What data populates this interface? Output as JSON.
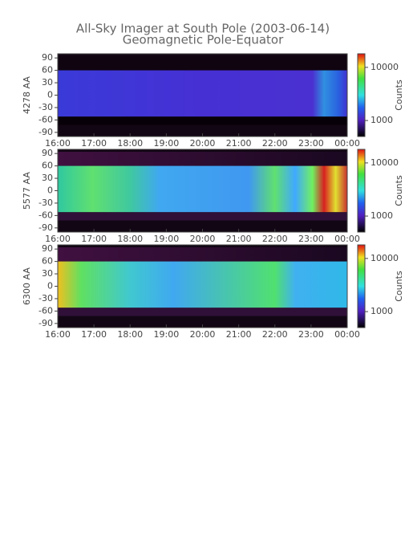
{
  "chart_data": [
    {
      "type": "heatmap",
      "title": "All-Sky Imager at South Pole (2003-06-14)",
      "subtitle": "Geomagnetic Pole-Equator",
      "ylabel": "4278 AA",
      "xlim": [
        16,
        24
      ],
      "xticks": [
        {
          "value": 16,
          "label": "16:00"
        },
        {
          "value": 17,
          "label": "17:00"
        },
        {
          "value": 18,
          "label": "18:00"
        },
        {
          "value": 19,
          "label": "19:00"
        },
        {
          "value": 20,
          "label": "20:00"
        },
        {
          "value": 21,
          "label": "21:00"
        },
        {
          "value": 22,
          "label": "22:00"
        },
        {
          "value": 23,
          "label": "23:00"
        },
        {
          "value": 24,
          "label": "00:00"
        }
      ],
      "ylim": [
        -100,
        100
      ],
      "yticks": [
        90,
        60,
        30,
        0,
        -30,
        -60,
        -90
      ],
      "colorbar": {
        "label": "Counts",
        "scale": "log",
        "lim": [
          500,
          18000
        ],
        "ticks": [
          1000,
          10000
        ]
      }
    },
    {
      "type": "heatmap",
      "ylabel": "5577 AA",
      "xlim": [
        16,
        24
      ],
      "xticks": [
        {
          "value": 16,
          "label": "16:00"
        },
        {
          "value": 17,
          "label": "17:00"
        },
        {
          "value": 18,
          "label": "18:00"
        },
        {
          "value": 19,
          "label": "19:00"
        },
        {
          "value": 20,
          "label": "20:00"
        },
        {
          "value": 21,
          "label": "21:00"
        },
        {
          "value": 22,
          "label": "22:00"
        },
        {
          "value": 23,
          "label": "23:00"
        },
        {
          "value": 24,
          "label": "00:00"
        }
      ],
      "ylim": [
        -100,
        100
      ],
      "yticks": [
        90,
        60,
        30,
        0,
        -30,
        -60,
        -90
      ],
      "colorbar": {
        "label": "Counts",
        "scale": "log",
        "lim": [
          500,
          18000
        ],
        "ticks": [
          1000,
          10000
        ]
      }
    },
    {
      "type": "heatmap",
      "ylabel": "6300 AA",
      "xlim": [
        16,
        24
      ],
      "xticks": [
        {
          "value": 16,
          "label": "16:00"
        },
        {
          "value": 17,
          "label": "17:00"
        },
        {
          "value": 18,
          "label": "18:00"
        },
        {
          "value": 19,
          "label": "19:00"
        },
        {
          "value": 20,
          "label": "20:00"
        },
        {
          "value": 21,
          "label": "21:00"
        },
        {
          "value": 22,
          "label": "22:00"
        },
        {
          "value": 23,
          "label": "23:00"
        },
        {
          "value": 24,
          "label": "00:00"
        }
      ],
      "ylim": [
        -100,
        100
      ],
      "yticks": [
        90,
        60,
        30,
        0,
        -30,
        -60,
        -90
      ],
      "colorbar": {
        "label": "Counts",
        "scale": "log",
        "lim": [
          500,
          18000
        ],
        "ticks": [
          1000,
          10000
        ]
      }
    }
  ]
}
